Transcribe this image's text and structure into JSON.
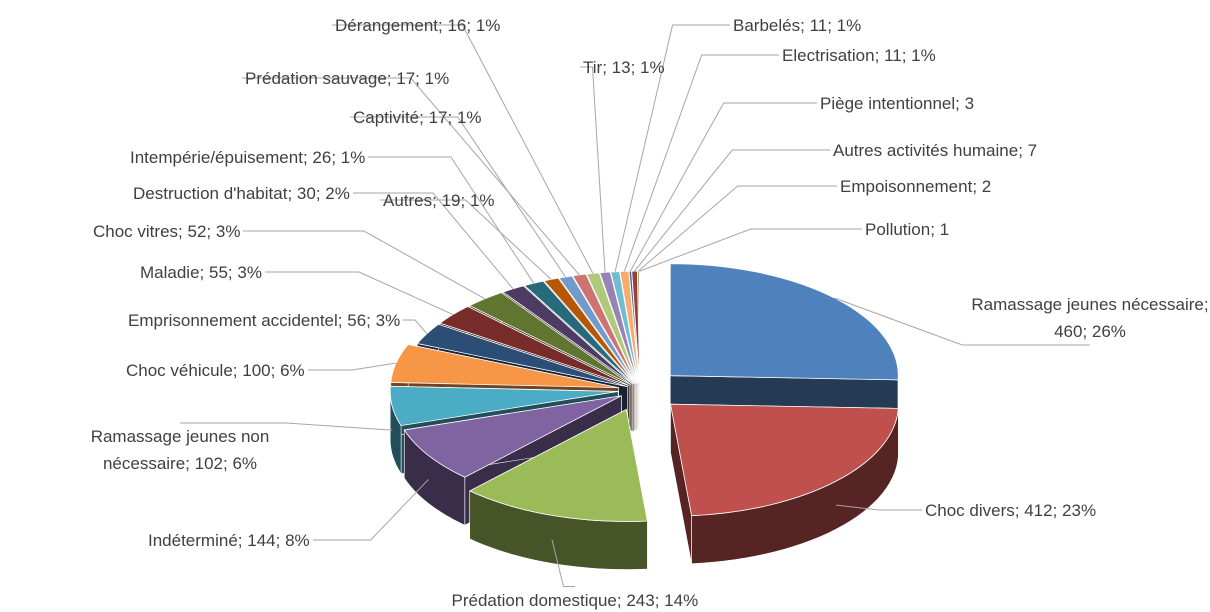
{
  "chart_data": {
    "type": "pie3d",
    "label_separator": "; ",
    "categories": [
      "Ramassage jeunes nécessaire",
      "Choc divers",
      "Prédation domestique",
      "Indéterminé",
      "Ramassage jeunes non nécessaire",
      "Choc véhicule",
      "Emprisonnement accidentel",
      "Maladie",
      "Choc vitres",
      "Destruction d'habitat",
      "Intempérie/épuisement",
      "Autres",
      "Captivité",
      "Prédation sauvage",
      "Dérangement",
      "Tir",
      "Barbelés",
      "Electrisation",
      "Piège intentionnel",
      "Autres activités humaine",
      "Empoisonnement",
      "Pollution"
    ],
    "values": [
      460,
      412,
      243,
      144,
      102,
      100,
      56,
      55,
      52,
      30,
      26,
      19,
      17,
      17,
      16,
      13,
      11,
      11,
      3,
      7,
      2,
      1
    ],
    "percent_labels": [
      "26%",
      "23%",
      "14%",
      "8%",
      "6%",
      "6%",
      "3%",
      "3%",
      "3%",
      "2%",
      "1%",
      "1%",
      "1%",
      "1%",
      "1%",
      "1%",
      "1%",
      "1%",
      null,
      null,
      null,
      null
    ],
    "colors": [
      "#4f81bd",
      "#c0504d",
      "#9bbb59",
      "#8064a2",
      "#4bacc6",
      "#f79646",
      "#2c4d75",
      "#772c2a",
      "#5f7530",
      "#4d3b62",
      "#276a7c",
      "#b65708",
      "#729aca",
      "#cd7371",
      "#afc97a",
      "#9983b5",
      "#6fbdd1",
      "#f9ab6b",
      "#3a679c",
      "#9f3b38",
      "#7f9c40",
      "#664f83"
    ]
  }
}
